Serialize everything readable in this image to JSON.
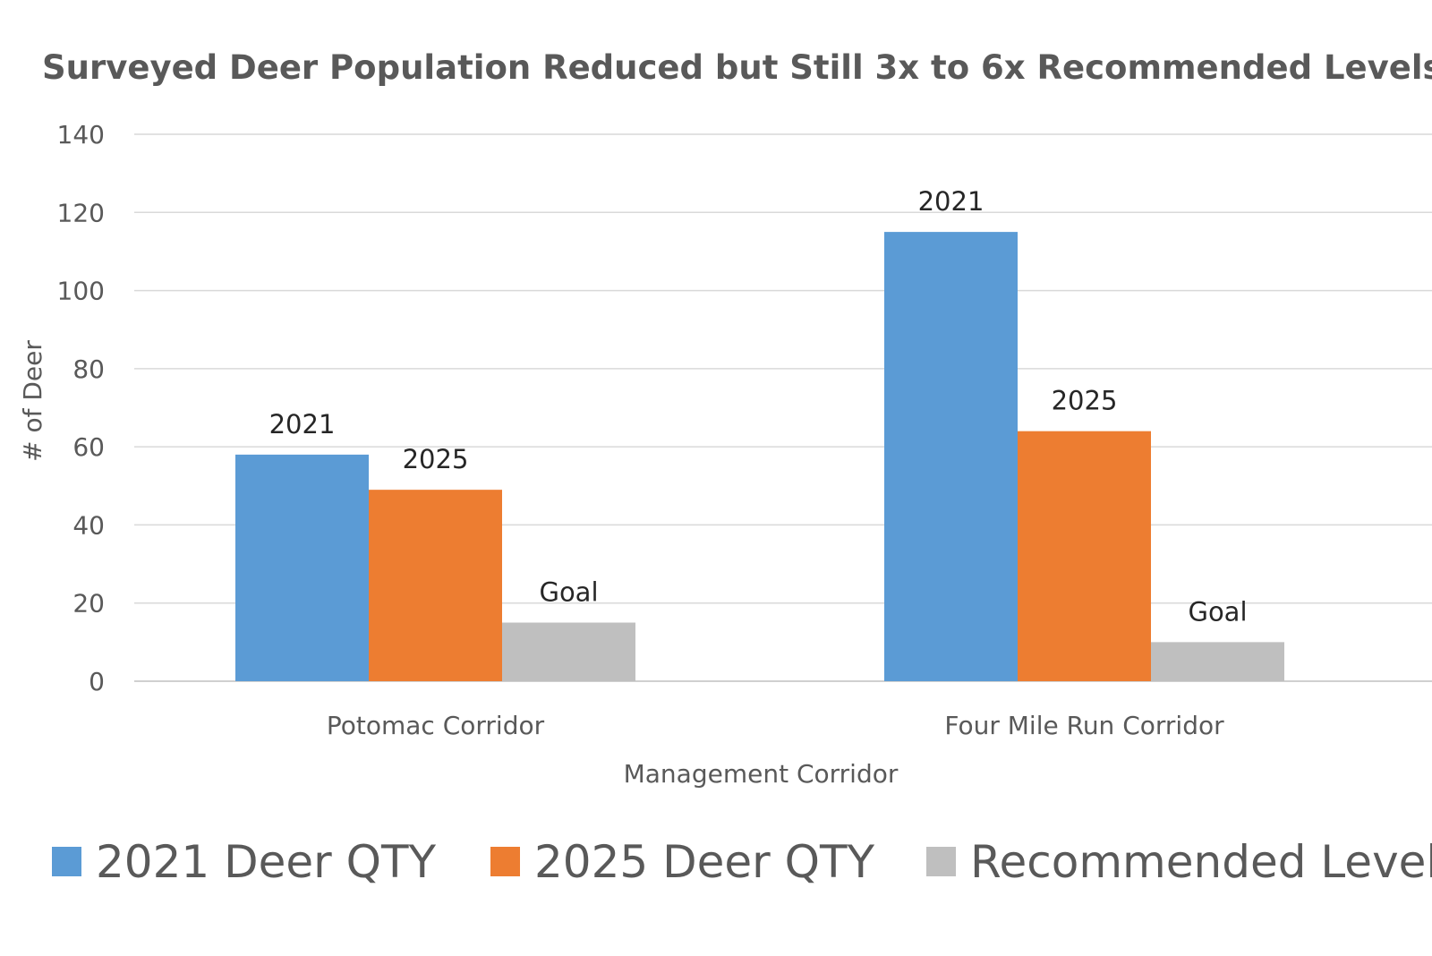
{
  "chart_data": {
    "type": "bar",
    "title": "Surveyed Deer Population Reduced but Still 3x to 6x Recommended Levels",
    "xlabel": "Management Corridor",
    "ylabel": "# of Deer",
    "ylim": [
      0,
      140
    ],
    "yticks": [
      0,
      20,
      40,
      60,
      80,
      100,
      120,
      140
    ],
    "grid": true,
    "legend_position": "bottom",
    "categories": [
      "Potomac Corridor",
      "Four Mile Run Corridor"
    ],
    "series": [
      {
        "name": "2021 Deer QTY",
        "color": "#5b9bd5",
        "values": [
          58,
          115
        ],
        "labels": [
          "2021",
          "2021"
        ]
      },
      {
        "name": "2025 Deer QTY",
        "color": "#ed7d31",
        "values": [
          49,
          64
        ],
        "labels": [
          "2025",
          "2025"
        ]
      },
      {
        "name": "Recommended Level",
        "color": "#bfbfbf",
        "values": [
          15,
          10
        ],
        "labels": [
          "Goal",
          "Goal"
        ]
      }
    ]
  }
}
